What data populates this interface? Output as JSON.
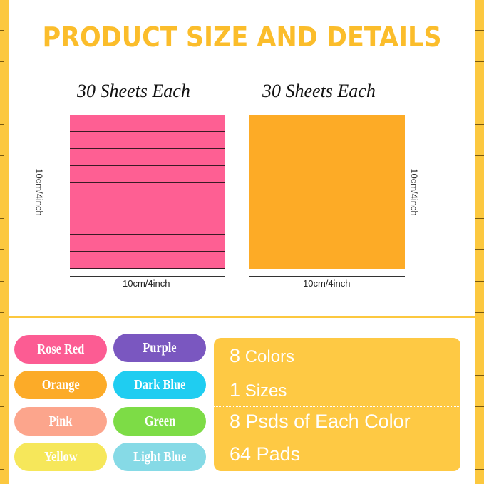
{
  "title": "PRODUCT SIZE AND DETAILS",
  "pads": [
    {
      "sheets": "30 Sheets Each",
      "width": "10cm/4inch",
      "height": "10cm/4inch",
      "color": "#fe5f93",
      "lined": true
    },
    {
      "sheets": "30 Sheets Each",
      "width": "10cm/4inch",
      "height": "10cm/4inch",
      "color": "#fdab26",
      "lined": false
    }
  ],
  "colors": [
    {
      "label": "Rose Red",
      "color": "#fc5c93"
    },
    {
      "label": "Purple",
      "color": "#7a57c0"
    },
    {
      "label": "Orange",
      "color": "#fcab28"
    },
    {
      "label": "Dark Blue",
      "color": "#1fcdf1"
    },
    {
      "label": "Pink",
      "color": "#fca58c"
    },
    {
      "label": "Green",
      "color": "#7ddc46"
    },
    {
      "label": "Yellow",
      "color": "#f6e75a"
    },
    {
      "label": "Light Blue",
      "color": "#86dae6"
    }
  ],
  "details": [
    {
      "num": "8",
      "text": "Colors"
    },
    {
      "num": "1",
      "text": "Sizes"
    },
    {
      "num": "8",
      "text": "Psds of Each Color"
    },
    {
      "num": "64",
      "text": "Pads"
    }
  ]
}
